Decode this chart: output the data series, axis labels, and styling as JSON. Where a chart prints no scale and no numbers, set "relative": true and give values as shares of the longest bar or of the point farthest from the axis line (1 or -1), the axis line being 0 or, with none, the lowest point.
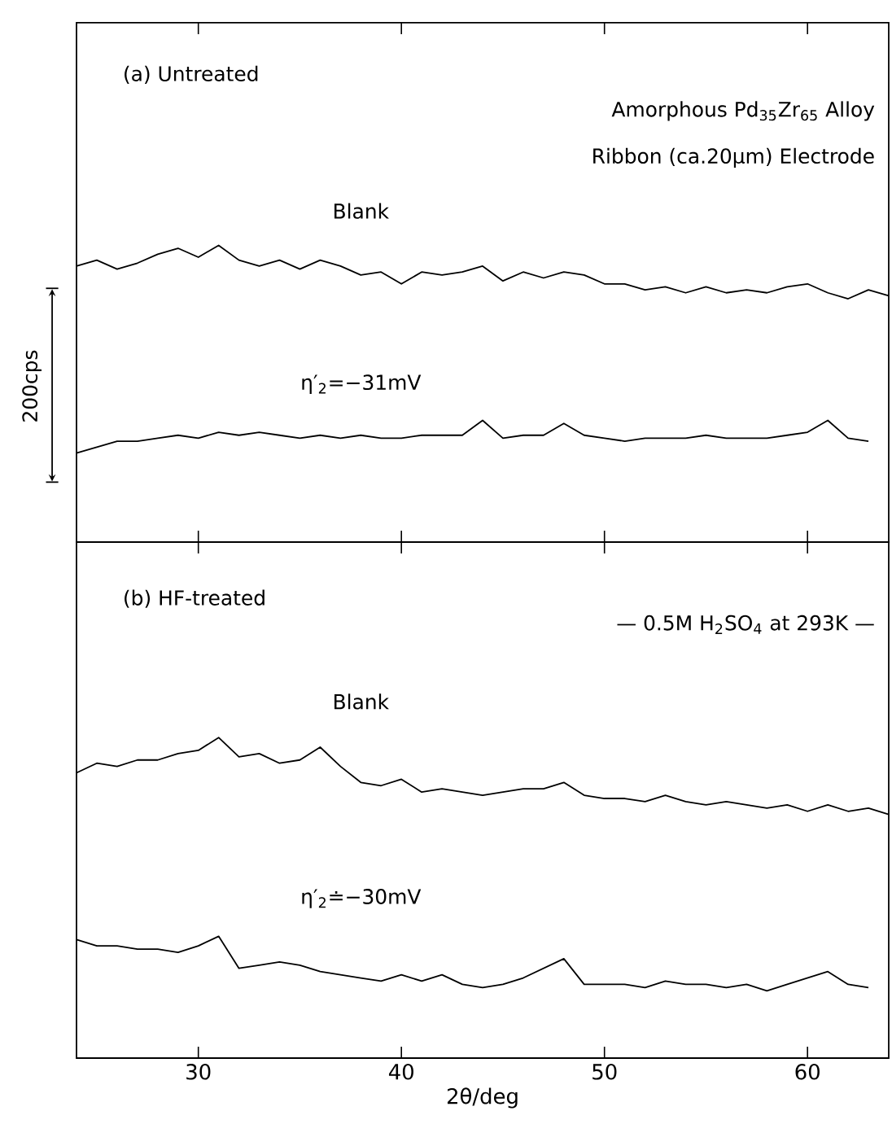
{
  "chart_data": [
    {
      "type": "line",
      "relative": true,
      "xlim": [
        24,
        64
      ],
      "xticks": [
        30,
        40,
        50,
        60
      ],
      "tick_labels": false,
      "annotations": [
        "(a) Untreated",
        "Amorphous Pd$_{35}$Zr$_{65}$ Alloy",
        "Ribbon (ca.20μm) Electrode",
        "200cps"
      ],
      "x": [
        24,
        25,
        26,
        27,
        28,
        29,
        30,
        31,
        32,
        33,
        34,
        35,
        36,
        37,
        38,
        39,
        40,
        41,
        42,
        43,
        44,
        45,
        46,
        47,
        48,
        49,
        50,
        51,
        52,
        53,
        54,
        55,
        56,
        57,
        58,
        59,
        60,
        61,
        62,
        63,
        64
      ],
      "series": [
        {
          "name": "Blank",
          "color": "#000000",
          "values": [
            0.93,
            0.95,
            0.92,
            0.94,
            0.97,
            0.99,
            0.96,
            1.0,
            0.95,
            0.93,
            0.95,
            0.92,
            0.95,
            0.93,
            0.9,
            0.91,
            0.87,
            0.91,
            0.9,
            0.91,
            0.93,
            0.88,
            0.91,
            0.89,
            0.91,
            0.9,
            0.87,
            0.87,
            0.85,
            0.86,
            0.84,
            0.86,
            0.84,
            0.85,
            0.84,
            0.86,
            0.87,
            0.84,
            0.82,
            0.85,
            0.83
          ]
        },
        {
          "name": "η′$_{2}$=−31mV",
          "color": "#000000",
          "values": [
            0.3,
            0.32,
            0.34,
            0.34,
            0.35,
            0.36,
            0.35,
            0.37,
            0.36,
            0.37,
            0.36,
            0.35,
            0.36,
            0.35,
            0.36,
            0.35,
            0.35,
            0.36,
            0.36,
            0.36,
            0.41,
            0.35,
            0.36,
            0.36,
            0.4,
            0.36,
            0.35,
            0.34,
            0.35,
            0.35,
            0.35,
            0.36,
            0.35,
            0.35,
            0.35,
            0.36,
            0.37,
            0.41,
            0.35,
            0.34,
            null
          ]
        }
      ]
    },
    {
      "type": "line",
      "relative": true,
      "xlim": [
        24,
        64
      ],
      "xticks": [
        30,
        40,
        50,
        60
      ],
      "tick_labels": "x",
      "xlabel": "2θ/deg",
      "annotations": [
        "(b) HF-treated",
        "— 0.5M H$_{2}$SO$_{4}$ at 293K —"
      ],
      "x": [
        24,
        25,
        26,
        27,
        28,
        29,
        30,
        31,
        32,
        33,
        34,
        35,
        36,
        37,
        38,
        39,
        40,
        41,
        42,
        43,
        44,
        45,
        46,
        47,
        48,
        49,
        50,
        51,
        52,
        53,
        54,
        55,
        56,
        57,
        58,
        59,
        60,
        61,
        62,
        63,
        64
      ],
      "series": [
        {
          "name": "Blank",
          "color": "#000000",
          "values": [
            0.89,
            0.92,
            0.91,
            0.93,
            0.93,
            0.95,
            0.96,
            1.0,
            0.94,
            0.95,
            0.92,
            0.93,
            0.97,
            0.91,
            0.86,
            0.85,
            0.87,
            0.83,
            0.84,
            0.83,
            0.82,
            0.83,
            0.84,
            0.84,
            0.86,
            0.82,
            0.81,
            0.81,
            0.8,
            0.82,
            0.8,
            0.79,
            0.8,
            0.79,
            0.78,
            0.79,
            0.77,
            0.79,
            0.77,
            0.78,
            0.76
          ]
        },
        {
          "name": "η′$_{2}$≐−30mV",
          "color": "#000000",
          "values": [
            0.37,
            0.35,
            0.35,
            0.34,
            0.34,
            0.33,
            0.35,
            0.38,
            0.28,
            0.29,
            0.3,
            0.29,
            0.27,
            0.26,
            0.25,
            0.24,
            0.26,
            0.24,
            0.26,
            0.23,
            0.22,
            0.23,
            0.25,
            0.28,
            0.31,
            0.23,
            0.23,
            0.23,
            0.22,
            0.24,
            0.23,
            0.23,
            0.22,
            0.23,
            0.21,
            0.23,
            0.25,
            0.27,
            0.23,
            0.22,
            null
          ]
        }
      ]
    }
  ]
}
